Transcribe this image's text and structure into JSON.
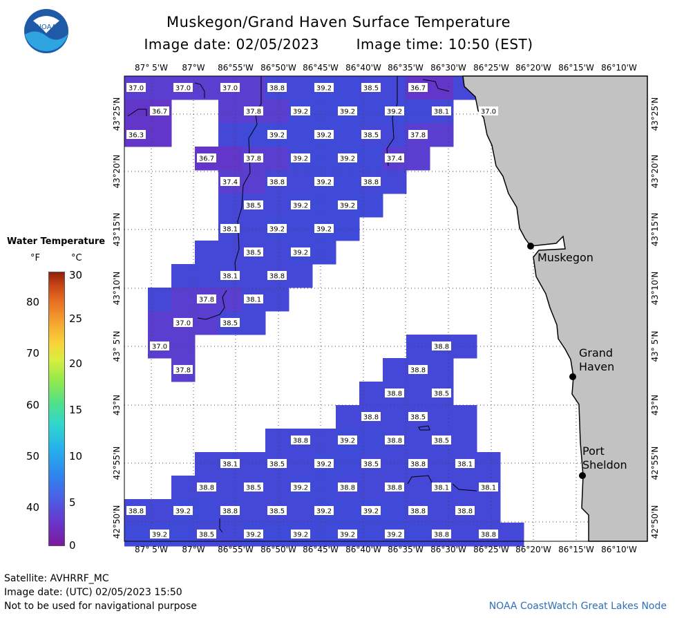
{
  "header": {
    "title": "Muskegon/Grand Haven Surface Temperature",
    "image_date": "Image date: 02/05/2023",
    "image_time": "Image time: 10:50 (EST)"
  },
  "logo_text": "NOAA",
  "legend": {
    "title": "Water Temperature",
    "unit_f": "°F",
    "unit_c": "°C",
    "f_ticks": [
      "80",
      "70",
      "60",
      "50",
      "40"
    ],
    "c_ticks": [
      "30",
      "25",
      "20",
      "15",
      "10",
      "5",
      "0"
    ]
  },
  "axes": {
    "lon_labels": [
      "87° 5'W",
      "87°W",
      "86°55'W",
      "86°50'W",
      "86°45'W",
      "86°40'W",
      "86°35'W",
      "86°30'W",
      "86°25'W",
      "86°20'W",
      "86°15'W",
      "86°10'W"
    ],
    "lat_labels": [
      "43°25'N",
      "43°20'N",
      "43°15'N",
      "43°10'N",
      "43° 5'N",
      "43°N",
      "42°55'N",
      "42°50'N"
    ]
  },
  "cities": {
    "muskegon": "Muskegon",
    "grand_haven_1": "Grand",
    "grand_haven_2": "Haven",
    "port_sheldon_1": "Port",
    "port_sheldon_2": "Sheldon"
  },
  "temperatures": [
    {
      "v": "37.0",
      "x": 1,
      "y": 1
    },
    {
      "v": "37.0",
      "x": 3,
      "y": 1
    },
    {
      "v": "37.0",
      "x": 5,
      "y": 1
    },
    {
      "v": "38.8",
      "x": 7,
      "y": 1
    },
    {
      "v": "39.2",
      "x": 9,
      "y": 1
    },
    {
      "v": "38.5",
      "x": 11,
      "y": 1
    },
    {
      "v": "36.7",
      "x": 13,
      "y": 1
    },
    {
      "v": "36.7",
      "x": 2,
      "y": 2
    },
    {
      "v": "37.8",
      "x": 6,
      "y": 2
    },
    {
      "v": "39.2",
      "x": 8,
      "y": 2
    },
    {
      "v": "39.2",
      "x": 10,
      "y": 2
    },
    {
      "v": "39.2",
      "x": 12,
      "y": 2
    },
    {
      "v": "38.1",
      "x": 14,
      "y": 2
    },
    {
      "v": "37.0",
      "x": 16,
      "y": 2
    },
    {
      "v": "36.3",
      "x": 1,
      "y": 3
    },
    {
      "v": "39.2",
      "x": 7,
      "y": 3
    },
    {
      "v": "39.2",
      "x": 9,
      "y": 3
    },
    {
      "v": "38.5",
      "x": 11,
      "y": 3
    },
    {
      "v": "37.8",
      "x": 13,
      "y": 3
    },
    {
      "v": "36.7",
      "x": 4,
      "y": 4
    },
    {
      "v": "37.8",
      "x": 6,
      "y": 4
    },
    {
      "v": "39.2",
      "x": 8,
      "y": 4
    },
    {
      "v": "39.2",
      "x": 10,
      "y": 4
    },
    {
      "v": "37.4",
      "x": 12,
      "y": 4
    },
    {
      "v": "37.4",
      "x": 5,
      "y": 5
    },
    {
      "v": "38.8",
      "x": 7,
      "y": 5
    },
    {
      "v": "39.2",
      "x": 9,
      "y": 5
    },
    {
      "v": "38.8",
      "x": 11,
      "y": 5
    },
    {
      "v": "38.5",
      "x": 6,
      "y": 6
    },
    {
      "v": "39.2",
      "x": 8,
      "y": 6
    },
    {
      "v": "39.2",
      "x": 10,
      "y": 6
    },
    {
      "v": "38.1",
      "x": 5,
      "y": 7
    },
    {
      "v": "39.2",
      "x": 7,
      "y": 7
    },
    {
      "v": "39.2",
      "x": 9,
      "y": 7
    },
    {
      "v": "38.5",
      "x": 6,
      "y": 8
    },
    {
      "v": "39.2",
      "x": 8,
      "y": 8
    },
    {
      "v": "38.1",
      "x": 5,
      "y": 9
    },
    {
      "v": "38.8",
      "x": 7,
      "y": 9
    },
    {
      "v": "37.8",
      "x": 4,
      "y": 10
    },
    {
      "v": "38.1",
      "x": 6,
      "y": 10
    },
    {
      "v": "37.0",
      "x": 3,
      "y": 11
    },
    {
      "v": "38.5",
      "x": 5,
      "y": 11
    },
    {
      "v": "37.0",
      "x": 2,
      "y": 12
    },
    {
      "v": "38.8",
      "x": 14,
      "y": 12
    },
    {
      "v": "37.8",
      "x": 3,
      "y": 13
    },
    {
      "v": "38.8",
      "x": 13,
      "y": 13
    },
    {
      "v": "38.8",
      "x": 12,
      "y": 14
    },
    {
      "v": "38.5",
      "x": 14,
      "y": 14
    },
    {
      "v": "38.8",
      "x": 11,
      "y": 15
    },
    {
      "v": "38.5",
      "x": 13,
      "y": 15
    },
    {
      "v": "38.8",
      "x": 8,
      "y": 16
    },
    {
      "v": "39.2",
      "x": 10,
      "y": 16
    },
    {
      "v": "38.8",
      "x": 12,
      "y": 16
    },
    {
      "v": "38.5",
      "x": 14,
      "y": 16
    },
    {
      "v": "38.1",
      "x": 5,
      "y": 17
    },
    {
      "v": "38.5",
      "x": 7,
      "y": 17
    },
    {
      "v": "39.2",
      "x": 9,
      "y": 17
    },
    {
      "v": "38.5",
      "x": 11,
      "y": 17
    },
    {
      "v": "38.8",
      "x": 13,
      "y": 17
    },
    {
      "v": "38.1",
      "x": 15,
      "y": 17
    },
    {
      "v": "38.8",
      "x": 4,
      "y": 18
    },
    {
      "v": "38.5",
      "x": 6,
      "y": 18
    },
    {
      "v": "39.2",
      "x": 8,
      "y": 18
    },
    {
      "v": "38.8",
      "x": 10,
      "y": 18
    },
    {
      "v": "38.8",
      "x": 12,
      "y": 18
    },
    {
      "v": "38.1",
      "x": 14,
      "y": 18
    },
    {
      "v": "38.1",
      "x": 16,
      "y": 18
    },
    {
      "v": "38.8",
      "x": 1,
      "y": 19
    },
    {
      "v": "39.2",
      "x": 3,
      "y": 19
    },
    {
      "v": "38.8",
      "x": 5,
      "y": 19
    },
    {
      "v": "38.5",
      "x": 7,
      "y": 19
    },
    {
      "v": "39.2",
      "x": 9,
      "y": 19
    },
    {
      "v": "39.2",
      "x": 11,
      "y": 19
    },
    {
      "v": "38.8",
      "x": 13,
      "y": 19
    },
    {
      "v": "38.8",
      "x": 15,
      "y": 19
    },
    {
      "v": "39.2",
      "x": 2,
      "y": 20
    },
    {
      "v": "38.5",
      "x": 4,
      "y": 20
    },
    {
      "v": "39.2",
      "x": 6,
      "y": 20
    },
    {
      "v": "39.2",
      "x": 8,
      "y": 20
    },
    {
      "v": "39.2",
      "x": 10,
      "y": 20
    },
    {
      "v": "39.2",
      "x": 12,
      "y": 20
    },
    {
      "v": "38.8",
      "x": 14,
      "y": 20
    },
    {
      "v": "38.8",
      "x": 16,
      "y": 20
    }
  ],
  "footer": {
    "satellite": "Satellite: AVHRRF_MC",
    "utc_date": "Image date: (UTC) 02/05/2023  15:50",
    "warning": "Not to be used for navigational purpose",
    "credit": "NOAA CoastWatch Great Lakes Node"
  },
  "colors": {
    "water_39": "#3f4ad8",
    "water_38": "#4547d6",
    "water_37": "#5a3ecf",
    "water_36": "#6236c8",
    "land": "#c2c2c2",
    "credit": "#2f6fb8"
  }
}
